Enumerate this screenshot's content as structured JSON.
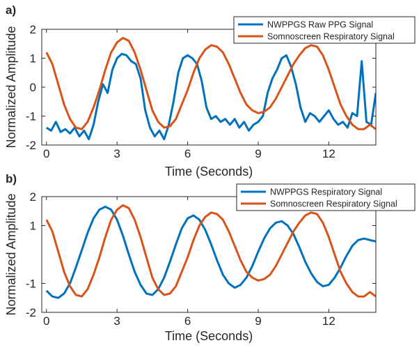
{
  "chart_data": [
    {
      "type": "line",
      "panel_label": "a)",
      "xlabel": "Time (Seconds)",
      "ylabel": "Normalized Amplitude",
      "xlim": [
        -0.2,
        14
      ],
      "ylim": [
        -2,
        2
      ],
      "xticks": [
        0,
        3,
        6,
        9,
        12
      ],
      "yticks": [
        -2,
        -1,
        0,
        1,
        2
      ],
      "grid": false,
      "box": true,
      "legend_position": "top-right",
      "series": [
        {
          "name": "NWPPGS Raw PPG Signal",
          "color": "#0072BD",
          "x": [
            0.0,
            0.2,
            0.4,
            0.6,
            0.8,
            1.0,
            1.2,
            1.4,
            1.6,
            1.8,
            2.0,
            2.2,
            2.4,
            2.6,
            2.8,
            3.0,
            3.2,
            3.4,
            3.6,
            3.8,
            4.0,
            4.2,
            4.4,
            4.6,
            4.8,
            5.0,
            5.2,
            5.4,
            5.6,
            5.8,
            6.0,
            6.2,
            6.4,
            6.6,
            6.8,
            7.0,
            7.2,
            7.4,
            7.6,
            7.8,
            8.0,
            8.2,
            8.4,
            8.6,
            8.8,
            9.0,
            9.2,
            9.4,
            9.6,
            9.8,
            10.0,
            10.2,
            10.4,
            10.6,
            10.8,
            11.0,
            11.2,
            11.4,
            11.6,
            11.8,
            12.0,
            12.2,
            12.4,
            12.6,
            12.8,
            13.0,
            13.2,
            13.4,
            13.6,
            13.8,
            14.0
          ],
          "y": [
            -1.4,
            -1.5,
            -1.2,
            -1.55,
            -1.45,
            -1.6,
            -1.4,
            -1.7,
            -1.5,
            -1.8,
            -1.3,
            -0.5,
            0.1,
            -0.2,
            0.6,
            1.0,
            1.15,
            1.1,
            0.9,
            0.8,
            0.3,
            -0.8,
            -1.4,
            -1.7,
            -1.5,
            -1.8,
            -1.3,
            -0.5,
            0.5,
            1.0,
            1.1,
            1.0,
            0.8,
            0.2,
            -0.7,
            -1.1,
            -1.0,
            -1.2,
            -1.1,
            -1.3,
            -1.1,
            -1.4,
            -1.2,
            -1.5,
            -1.3,
            -1.2,
            -1.0,
            -0.2,
            0.3,
            0.6,
            1.0,
            1.1,
            0.7,
            0.1,
            -0.7,
            -1.2,
            -0.9,
            -1.0,
            -1.2,
            -1.0,
            -0.8,
            -1.1,
            -1.3,
            -1.2,
            -1.4,
            -0.9,
            -1.0,
            0.9,
            -1.2,
            -1.3,
            -0.2
          ]
        },
        {
          "name": "Somnoscreen Respiratory Signal",
          "color": "#D95319",
          "x": [
            0.0,
            0.25,
            0.5,
            0.75,
            1.0,
            1.25,
            1.5,
            1.75,
            2.0,
            2.25,
            2.5,
            2.75,
            3.0,
            3.25,
            3.5,
            3.75,
            4.0,
            4.25,
            4.5,
            4.75,
            5.0,
            5.25,
            5.5,
            5.75,
            6.0,
            6.25,
            6.5,
            6.75,
            7.0,
            7.25,
            7.5,
            7.75,
            8.0,
            8.25,
            8.5,
            8.75,
            9.0,
            9.25,
            9.5,
            9.75,
            10.0,
            10.25,
            10.5,
            10.75,
            11.0,
            11.25,
            11.5,
            11.75,
            12.0,
            12.25,
            12.5,
            12.75,
            13.0,
            13.25,
            13.5,
            13.75,
            14.0
          ],
          "y": [
            1.2,
            0.8,
            0.1,
            -0.6,
            -1.1,
            -1.4,
            -1.45,
            -1.2,
            -0.7,
            -0.1,
            0.6,
            1.2,
            1.55,
            1.7,
            1.6,
            1.2,
            0.6,
            -0.1,
            -0.8,
            -1.2,
            -1.4,
            -1.35,
            -1.1,
            -0.6,
            -0.1,
            0.5,
            1.0,
            1.3,
            1.45,
            1.4,
            1.2,
            0.8,
            0.3,
            -0.2,
            -0.6,
            -0.8,
            -0.9,
            -0.85,
            -0.7,
            -0.4,
            0.0,
            0.4,
            0.8,
            1.1,
            1.35,
            1.45,
            1.4,
            1.1,
            0.6,
            0.0,
            -0.6,
            -1.0,
            -1.3,
            -1.45,
            -1.45,
            -1.3,
            -1.45
          ]
        }
      ]
    },
    {
      "type": "line",
      "panel_label": "b)",
      "xlabel": "Time (Seconds)",
      "ylabel": "Normalized Amplitude",
      "xlim": [
        -0.2,
        14
      ],
      "ylim": [
        -2,
        2
      ],
      "xticks": [
        0,
        3,
        6,
        9,
        12
      ],
      "yticks": [
        -2,
        -1,
        1,
        2
      ],
      "grid": false,
      "box": true,
      "legend_position": "top-right",
      "series": [
        {
          "name": "NWPPGS Respiratory Signal",
          "color": "#0072BD",
          "x": [
            0.0,
            0.25,
            0.5,
            0.75,
            1.0,
            1.25,
            1.5,
            1.75,
            2.0,
            2.25,
            2.5,
            2.75,
            3.0,
            3.25,
            3.5,
            3.75,
            4.0,
            4.25,
            4.5,
            4.75,
            5.0,
            5.25,
            5.5,
            5.75,
            6.0,
            6.25,
            6.5,
            6.75,
            7.0,
            7.25,
            7.5,
            7.75,
            8.0,
            8.25,
            8.5,
            8.75,
            9.0,
            9.25,
            9.5,
            9.75,
            10.0,
            10.25,
            10.5,
            10.75,
            11.0,
            11.25,
            11.5,
            11.75,
            12.0,
            12.25,
            12.5,
            12.75,
            13.0,
            13.25,
            13.5,
            13.75,
            14.0
          ],
          "y": [
            -1.25,
            -1.45,
            -1.5,
            -1.35,
            -1.0,
            -0.45,
            0.15,
            0.75,
            1.25,
            1.55,
            1.65,
            1.55,
            1.2,
            0.65,
            0.0,
            -0.6,
            -1.05,
            -1.35,
            -1.4,
            -1.2,
            -0.8,
            -0.25,
            0.35,
            0.9,
            1.25,
            1.35,
            1.2,
            0.85,
            0.35,
            -0.2,
            -0.7,
            -1.0,
            -1.15,
            -1.05,
            -0.8,
            -0.4,
            0.1,
            0.55,
            0.9,
            1.1,
            1.15,
            1.0,
            0.7,
            0.25,
            -0.25,
            -0.65,
            -0.95,
            -1.1,
            -1.05,
            -0.8,
            -0.45,
            -0.05,
            0.3,
            0.5,
            0.55,
            0.5,
            0.45
          ]
        },
        {
          "name": "Somnoscreen Respiratory Signal",
          "color": "#D95319",
          "x": [
            0.0,
            0.25,
            0.5,
            0.75,
            1.0,
            1.25,
            1.5,
            1.75,
            2.0,
            2.25,
            2.5,
            2.75,
            3.0,
            3.25,
            3.5,
            3.75,
            4.0,
            4.25,
            4.5,
            4.75,
            5.0,
            5.25,
            5.5,
            5.75,
            6.0,
            6.25,
            6.5,
            6.75,
            7.0,
            7.25,
            7.5,
            7.75,
            8.0,
            8.25,
            8.5,
            8.75,
            9.0,
            9.25,
            9.5,
            9.75,
            10.0,
            10.25,
            10.5,
            10.75,
            11.0,
            11.25,
            11.5,
            11.75,
            12.0,
            12.25,
            12.5,
            12.75,
            13.0,
            13.25,
            13.5,
            13.75,
            14.0
          ],
          "y": [
            1.2,
            0.8,
            0.1,
            -0.6,
            -1.1,
            -1.4,
            -1.45,
            -1.2,
            -0.7,
            -0.1,
            0.6,
            1.2,
            1.55,
            1.7,
            1.6,
            1.2,
            0.6,
            -0.1,
            -0.8,
            -1.2,
            -1.4,
            -1.35,
            -1.1,
            -0.6,
            -0.1,
            0.5,
            1.0,
            1.3,
            1.45,
            1.4,
            1.2,
            0.8,
            0.3,
            -0.2,
            -0.6,
            -0.8,
            -0.9,
            -0.85,
            -0.7,
            -0.4,
            0.0,
            0.4,
            0.8,
            1.1,
            1.35,
            1.45,
            1.4,
            1.1,
            0.6,
            0.0,
            -0.6,
            -1.0,
            -1.3,
            -1.45,
            -1.45,
            -1.3,
            -1.45
          ]
        }
      ]
    }
  ]
}
